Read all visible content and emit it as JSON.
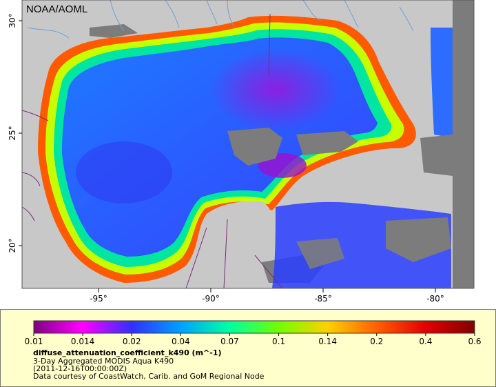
{
  "map": {
    "credit": "NOAA/AOML",
    "lon_ticks": [
      {
        "value": -95,
        "label": "-95°"
      },
      {
        "value": -90,
        "label": "-90°"
      },
      {
        "value": -85,
        "label": "-85°"
      },
      {
        "value": -80,
        "label": "-80°"
      }
    ],
    "lat_ticks": [
      {
        "value": 30,
        "label": "30°"
      },
      {
        "value": 25,
        "label": "25°"
      },
      {
        "value": 20,
        "label": "20°"
      }
    ],
    "colors": {
      "land": "#c8c8c8",
      "no_data": "#7c7c7c",
      "rivers": "#6fa0d8",
      "borders": "#7a2a7a"
    }
  },
  "legend": {
    "colorbar_labels": [
      "0.01",
      "0.014",
      "0.02",
      "0.04",
      "0.07",
      "0.1",
      "0.14",
      "0.2",
      "0.4",
      "0.6"
    ],
    "colorbar_colors": [
      "#7f007f",
      "#ff00ff",
      "#3030ff",
      "#00a0ff",
      "#00ffa0",
      "#70ff00",
      "#ffd000",
      "#ff6000",
      "#e00000",
      "#800000"
    ],
    "title": "diffuse_attenuation_coefficient_k490 (m^-1)",
    "line1": "3-Day Aggregated MODIS Aqua K490",
    "line2": "(2011-12-16T00:00:00Z)",
    "line3": "Data courtesy of CoastWatch, Carib. and GoM Regional Node"
  }
}
